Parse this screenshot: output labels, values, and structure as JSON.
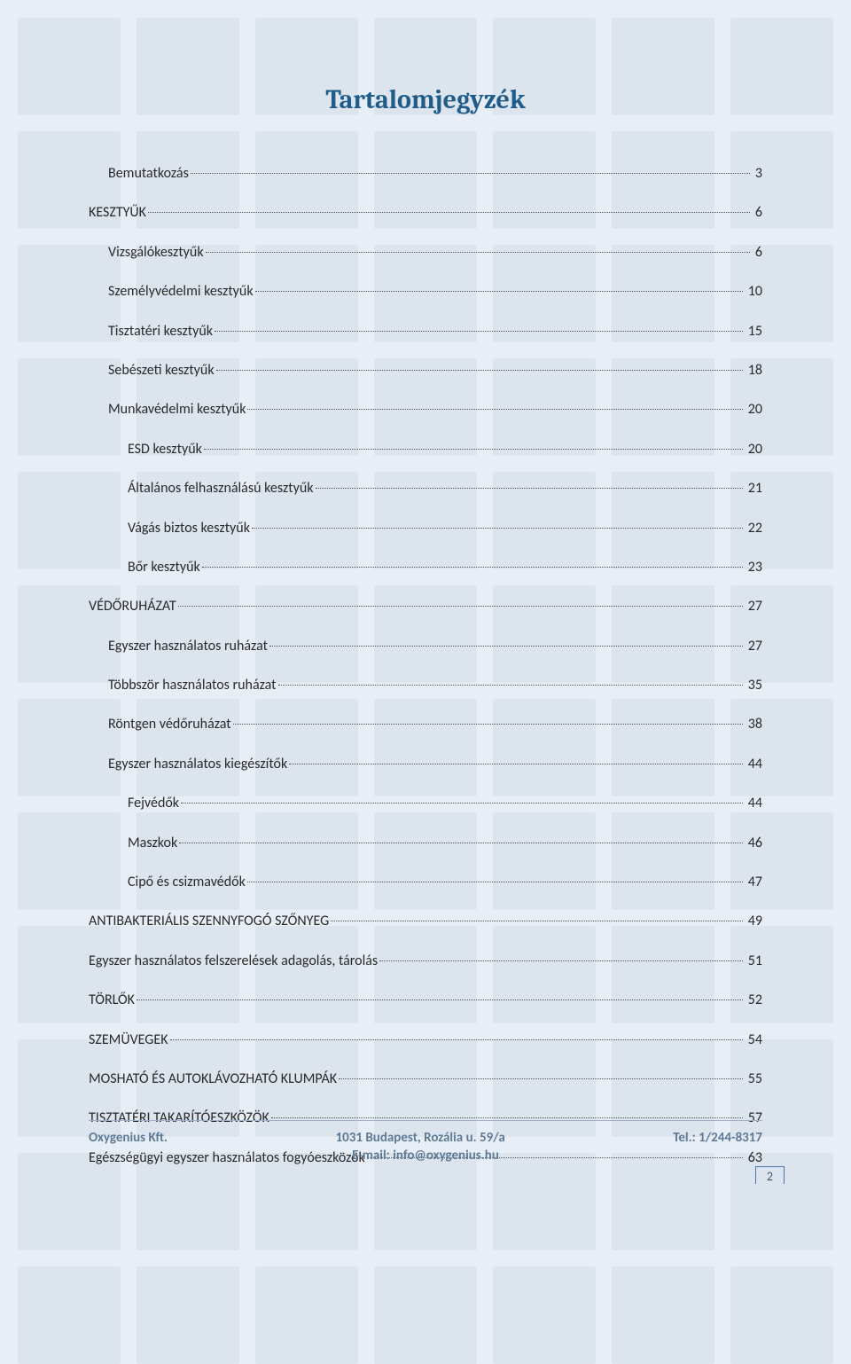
{
  "colors": {
    "background": "#e8eef5",
    "tile": "#d2dce8",
    "title_text": "#1f5c8a",
    "body_text": "#2a2a2a",
    "leader_dot": "#505050",
    "footer_text": "#5e7a95",
    "footer_border": "#9fb0c4",
    "pagebox_border": "#4978a8"
  },
  "typography": {
    "title_font": "Cambria",
    "title_size_pt": 20,
    "body_font": "Calibri",
    "body_size_pt": 11,
    "footer_size_pt": 10
  },
  "title": "Tartalomjegyzék",
  "toc": [
    {
      "label": "Bemutatkozás",
      "page": "3",
      "level": 1
    },
    {
      "label": "KESZTYŰK",
      "page": "6",
      "level": 0
    },
    {
      "label": "Vizsgálókesztyűk",
      "page": "6",
      "level": 1
    },
    {
      "label": "Személyvédelmi kesztyűk",
      "page": "10",
      "level": 1
    },
    {
      "label": "Tisztatéri kesztyűk",
      "page": "15",
      "level": 1
    },
    {
      "label": "Sebészeti kesztyűk",
      "page": "18",
      "level": 1
    },
    {
      "label": "Munkavédelmi kesztyűk",
      "page": "20",
      "level": 1
    },
    {
      "label": "ESD kesztyűk",
      "page": "20",
      "level": 2
    },
    {
      "label": "Általános felhasználású kesztyűk",
      "page": "21",
      "level": 2
    },
    {
      "label": "Vágás biztos kesztyűk",
      "page": "22",
      "level": 2
    },
    {
      "label": "Bőr kesztyűk",
      "page": "23",
      "level": 2
    },
    {
      "label": "VÉDŐRUHÁZAT",
      "page": "27",
      "level": 0
    },
    {
      "label": "Egyszer használatos ruházat",
      "page": "27",
      "level": 1
    },
    {
      "label": "Többször használatos ruházat",
      "page": "35",
      "level": 1
    },
    {
      "label": "Röntgen védőruházat",
      "page": "38",
      "level": 1
    },
    {
      "label": "Egyszer használatos kiegészítők",
      "page": "44",
      "level": 1
    },
    {
      "label": "Fejvédők",
      "page": "44",
      "level": 2
    },
    {
      "label": "Maszkok",
      "page": "46",
      "level": 2
    },
    {
      "label": "Cipő és csizmavédők",
      "page": "47",
      "level": 2
    },
    {
      "label": "ANTIBAKTERIÁLIS SZENNYFOGÓ SZŐNYEG",
      "page": "49",
      "level": 0
    },
    {
      "label": "Egyszer használatos felszerelések adagolás, tárolás",
      "page": "51",
      "level": 0
    },
    {
      "label": "TÖRLŐK",
      "page": "52",
      "level": 0
    },
    {
      "label": "SZEMÜVEGEK",
      "page": "54",
      "level": 0
    },
    {
      "label": "MOSHATÓ ÉS AUTOKLÁVOZHATÓ KLUMPÁK",
      "page": "55",
      "level": 0
    },
    {
      "label": "TISZTATÉRI TAKARÍTÓESZKÖZÖK",
      "page": "57",
      "level": 0
    },
    {
      "label": "Egészségügyi egyszer használatos fogyóeszközök",
      "page": "63",
      "level": 0
    }
  ],
  "footer": {
    "company": "Oxygenius Kft.",
    "address": "1031 Budapest, Rozália u. 59/a",
    "phone": "Tel.: 1/244-8317",
    "email": "E-mail: info@oxygenius.hu"
  },
  "page_number": "2"
}
